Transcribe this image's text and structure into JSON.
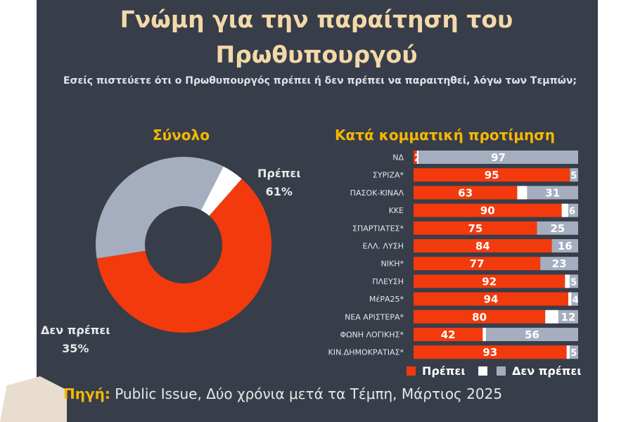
{
  "title_line1": "Γνώμη για την παραίτηση του",
  "title_line2": "Πρωθυπουργού",
  "subtitle": "Εσείς πιστεύετε ότι ο Πρωθυπουργός πρέπει ή δεν πρέπει να παραιτηθεί, λόγω των Τεμπών;",
  "footer": {
    "label": "Πηγή:",
    "text": " Public Issue, Δύο χρόνια μετά τα Τέμπη, Μάρτιος 2025"
  },
  "colors": {
    "must": "#f23a0c",
    "neutral": "#ffffff",
    "mustnot": "#a4aebf",
    "panel": "#383d4a",
    "accent": "#f5b800"
  },
  "chart_data": [
    {
      "type": "pie",
      "title": "Σύνολο",
      "slices": [
        {
          "label": "Πρέπει",
          "value": 61,
          "display": "61%"
        },
        {
          "label": "Δεν πρέπει",
          "value": 35,
          "display": "35%"
        },
        {
          "label": "",
          "value": 4
        }
      ]
    },
    {
      "type": "bar",
      "orientation": "horizontal",
      "stacked": true,
      "title": "Κατά κομματική προτίμηση",
      "categories": [
        "ΝΔ",
        "ΣΥΡΙΖΑ*",
        "ΠΑΣΟΚ-ΚΙΝΑΛ",
        "ΚΚΕ",
        "ΣΠΑΡΤΙΑΤΕΣ*",
        "ΕΛΛ. ΛΥΣΗ",
        "ΝΙΚΗ*",
        "ΠΛΕΥΣΗ",
        "ΜέΡΑ25*",
        "ΝΕΑ ΑΡΙΣΤΕΡΑ*",
        "ΦΩΝΗ ΛΟΓΙΚΗΣ*",
        "ΚΙΝ.ΔΗΜΟΚΡΑΤΙΑΣ*"
      ],
      "series": [
        {
          "name": "Πρέπει",
          "values": [
            2,
            95,
            63,
            90,
            75,
            84,
            77,
            92,
            94,
            80,
            42,
            93
          ]
        },
        {
          "name": "",
          "values": [
            1,
            0,
            6,
            4,
            0,
            0,
            0,
            3,
            2,
            8,
            2,
            2
          ]
        },
        {
          "name": "Δεν πρέπει",
          "values": [
            97,
            5,
            31,
            6,
            25,
            16,
            23,
            5,
            4,
            12,
            56,
            5
          ]
        }
      ],
      "xlim": [
        0,
        100
      ],
      "legend": "bottom"
    }
  ]
}
